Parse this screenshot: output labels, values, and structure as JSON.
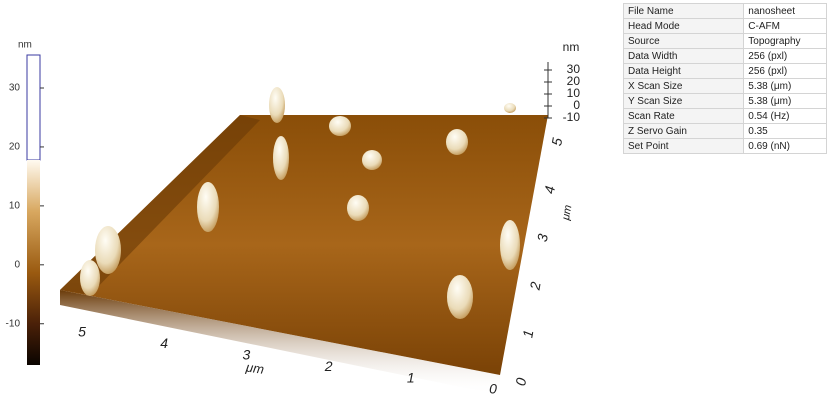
{
  "colorbar": {
    "unit": "nm",
    "range": [
      -17,
      35.6
    ],
    "ticks": [
      30,
      20,
      10,
      0,
      -10
    ]
  },
  "scene": {
    "x_axis": {
      "unit": "μm",
      "ticks": [
        5,
        4,
        3,
        2,
        1,
        0
      ]
    },
    "y_axis": {
      "unit": "μm",
      "ticks": [
        0,
        1,
        2,
        3,
        4,
        5
      ]
    },
    "z_axis": {
      "unit": "nm",
      "ticks": [
        30,
        20,
        10,
        0,
        -10
      ]
    }
  },
  "info_table": {
    "rows": [
      [
        "File Name",
        "nanosheet"
      ],
      [
        "Head Mode",
        "C-AFM"
      ],
      [
        "Source",
        "Topography"
      ],
      [
        "Data Width",
        "256 (pxl)"
      ],
      [
        "Data Height",
        "256 (pxl)"
      ],
      [
        "X Scan Size",
        "5.38 (μm)"
      ],
      [
        "Y Scan Size",
        "5.38 (μm)"
      ],
      [
        "Scan Rate",
        "0.54 (Hz)"
      ],
      [
        "Z Servo Gain",
        "0.35"
      ],
      [
        "Set Point",
        "0.69 (nN)"
      ]
    ]
  }
}
